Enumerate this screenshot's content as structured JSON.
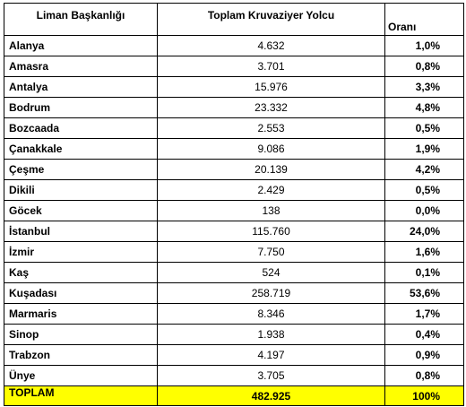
{
  "table": {
    "headers": {
      "port": "Liman Başkanlığı",
      "total": "Toplam Kruvaziyer Yolcu",
      "rate": "Oranı"
    },
    "rows": [
      {
        "port": "Alanya",
        "total": "4.632",
        "rate": "1,0%"
      },
      {
        "port": "Amasra",
        "total": "3.701",
        "rate": "0,8%"
      },
      {
        "port": "Antalya",
        "total": "15.976",
        "rate": "3,3%"
      },
      {
        "port": "Bodrum",
        "total": "23.332",
        "rate": "4,8%"
      },
      {
        "port": "Bozcaada",
        "total": "2.553",
        "rate": "0,5%"
      },
      {
        "port": "Çanakkale",
        "total": "9.086",
        "rate": "1,9%"
      },
      {
        "port": "Çeşme",
        "total": "20.139",
        "rate": "4,2%"
      },
      {
        "port": "Dikili",
        "total": "2.429",
        "rate": "0,5%"
      },
      {
        "port": "Göcek",
        "total": "138",
        "rate": "0,0%"
      },
      {
        "port": "İstanbul",
        "total": "115.760",
        "rate": "24,0%"
      },
      {
        "port": "İzmir",
        "total": "7.750",
        "rate": "1,6%"
      },
      {
        "port": "Kaş",
        "total": "524",
        "rate": "0,1%"
      },
      {
        "port": "Kuşadası",
        "total": "258.719",
        "rate": "53,6%"
      },
      {
        "port": "Marmaris",
        "total": "8.346",
        "rate": "1,7%"
      },
      {
        "port": "Sinop",
        "total": "1.938",
        "rate": "0,4%"
      },
      {
        "port": "Trabzon",
        "total": "4.197",
        "rate": "0,9%"
      },
      {
        "port": "Ünye",
        "total": "3.705",
        "rate": "0,8%"
      }
    ],
    "footer": {
      "port": "TOPLAM",
      "total": "482.925",
      "rate": "100%"
    },
    "colors": {
      "total_row_background": "#ffff00",
      "border": "#000000"
    }
  }
}
